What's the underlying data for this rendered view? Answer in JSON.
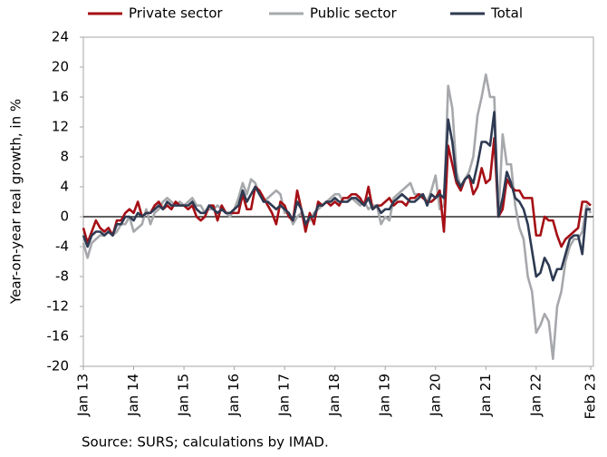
{
  "chart_data": {
    "type": "line",
    "y_label": "Year-on-year real growth, in %",
    "source": "Source: SURS; calculations by IMAD.",
    "legend": "top",
    "ylim": [
      -20,
      24
    ],
    "yticks": [
      -20,
      -16,
      -12,
      -8,
      -4,
      0,
      4,
      8,
      12,
      16,
      20,
      24
    ],
    "categories": [
      "Jan 13",
      null,
      null,
      null,
      null,
      null,
      null,
      null,
      null,
      null,
      null,
      null,
      "Jan 14",
      null,
      null,
      null,
      null,
      null,
      null,
      null,
      null,
      null,
      null,
      null,
      "Jan 15",
      null,
      null,
      null,
      null,
      null,
      null,
      null,
      null,
      null,
      null,
      null,
      "Jan 16",
      null,
      null,
      null,
      null,
      null,
      null,
      null,
      null,
      null,
      null,
      null,
      "Jan 17",
      null,
      null,
      null,
      null,
      null,
      null,
      null,
      null,
      null,
      null,
      null,
      "Jan 18",
      null,
      null,
      null,
      null,
      null,
      null,
      null,
      null,
      null,
      null,
      null,
      "Jan 19",
      null,
      null,
      null,
      null,
      null,
      null,
      null,
      null,
      null,
      null,
      null,
      "Jan 20",
      null,
      null,
      null,
      null,
      null,
      null,
      null,
      null,
      null,
      null,
      null,
      "Jan 21",
      null,
      null,
      null,
      null,
      null,
      null,
      null,
      null,
      null,
      null,
      null,
      "Jan 22",
      null,
      null,
      null,
      null,
      null,
      null,
      null,
      null,
      null,
      null,
      null,
      null,
      "Feb 23"
    ],
    "series": [
      {
        "name": "Private sector",
        "color": "#a50f15",
        "values": [
          -1.5,
          -3.5,
          -2,
          -0.5,
          -1.5,
          -2,
          -1.5,
          -2.5,
          -0.5,
          -0.5,
          0.5,
          1,
          0.5,
          2,
          0,
          0.5,
          0.5,
          1.5,
          2,
          1,
          1.5,
          1,
          2,
          1.5,
          1.5,
          1,
          1.5,
          0,
          -0.5,
          0,
          1.5,
          1.5,
          -0.5,
          1.5,
          0.5,
          0.5,
          0.5,
          0.5,
          3,
          1,
          1,
          4,
          3.5,
          2.5,
          1.5,
          0.5,
          -1,
          2,
          1.5,
          0,
          -0.5,
          3.5,
          1,
          -2,
          0.5,
          -1,
          2,
          1.5,
          2,
          1.5,
          2,
          1.5,
          2.5,
          2.5,
          3,
          3,
          2.5,
          1.5,
          4,
          1,
          1.5,
          1.5,
          2,
          2.5,
          1.5,
          2,
          2,
          1.5,
          2.5,
          2.5,
          3,
          2.5,
          2,
          2,
          2.5,
          3.5,
          -2,
          9.5,
          7,
          4.5,
          3.5,
          5,
          5.5,
          3,
          4,
          6.5,
          4.5,
          5,
          10.5,
          0,
          1,
          5,
          4,
          3.5,
          3.5,
          2.5,
          2.5,
          2.5,
          -2.5,
          -2.5,
          0,
          -0.5,
          -0.5,
          -2.5,
          -4,
          -3,
          -2.5,
          -2,
          -1.5,
          2,
          2,
          1.5
        ]
      },
      {
        "name": "Public sector",
        "color": "#a6a8ab",
        "values": [
          -3.5,
          -5.5,
          -3.5,
          -3,
          -2.5,
          -2.5,
          -2,
          -2.5,
          -2,
          -1,
          -1,
          0,
          -2,
          -1.5,
          -1,
          1,
          -1,
          0.5,
          1,
          2,
          2.5,
          2,
          1.5,
          2,
          1.5,
          2,
          2.5,
          1.5,
          1.5,
          0.5,
          1,
          1,
          1.5,
          1,
          0.5,
          0,
          1,
          2.5,
          4.5,
          3,
          5,
          4.5,
          3,
          2,
          2.5,
          3,
          3.5,
          3,
          0.5,
          0.5,
          -1,
          0,
          0.5,
          -1,
          -0.5,
          0.5,
          1,
          1.5,
          2,
          2.5,
          3,
          3,
          2,
          2,
          2.5,
          2,
          1.5,
          2,
          1,
          1.5,
          1.5,
          -1,
          0,
          -0.5,
          2.5,
          3,
          3.5,
          4,
          4.5,
          3,
          3,
          3,
          2,
          3.5,
          5.5,
          1,
          1.5,
          17.5,
          14.5,
          6,
          4,
          5,
          6,
          8,
          13.5,
          16,
          19,
          16,
          16,
          0,
          11,
          7,
          7,
          1.5,
          -1.5,
          -3,
          -8,
          -10,
          -15.5,
          -14.5,
          -13,
          -14,
          -19,
          -12,
          -10,
          -6,
          -4,
          -3,
          -3,
          -2,
          1.5,
          0.5
        ]
      },
      {
        "name": "Total",
        "color": "#2e3a52",
        "values": [
          -2.5,
          -4,
          -2.5,
          -2,
          -2,
          -2.5,
          -2,
          -2.5,
          -1,
          -1,
          0,
          0,
          -0.5,
          0.5,
          0,
          0.5,
          0.5,
          1,
          1.5,
          1,
          2,
          1.5,
          1.5,
          1.5,
          1.5,
          1.5,
          2,
          1,
          0.5,
          0.5,
          1.5,
          1,
          0.5,
          1,
          0.5,
          0.5,
          1,
          1.5,
          3.5,
          2,
          3,
          4,
          3,
          2,
          2,
          1.5,
          1,
          1.5,
          1,
          0.5,
          -0.5,
          2,
          1,
          -1,
          0,
          0,
          1.5,
          1.5,
          2,
          2,
          2.5,
          2,
          2,
          2,
          2.5,
          2.5,
          2,
          1.5,
          2.5,
          1,
          1.5,
          0.5,
          1,
          1,
          2,
          2.5,
          3,
          2.5,
          2,
          2,
          2.5,
          3,
          1.5,
          3,
          2.5,
          3,
          2.5,
          13,
          10,
          5,
          4,
          5,
          5.5,
          4.5,
          7,
          10,
          10,
          9.5,
          14,
          0,
          2.5,
          6,
          4.5,
          2.5,
          2,
          1,
          -1,
          -4.5,
          -8,
          -7.5,
          -5.5,
          -6.5,
          -8.5,
          -7,
          -7,
          -5,
          -3,
          -2.5,
          -2.5,
          -5,
          1,
          1
        ]
      }
    ]
  }
}
